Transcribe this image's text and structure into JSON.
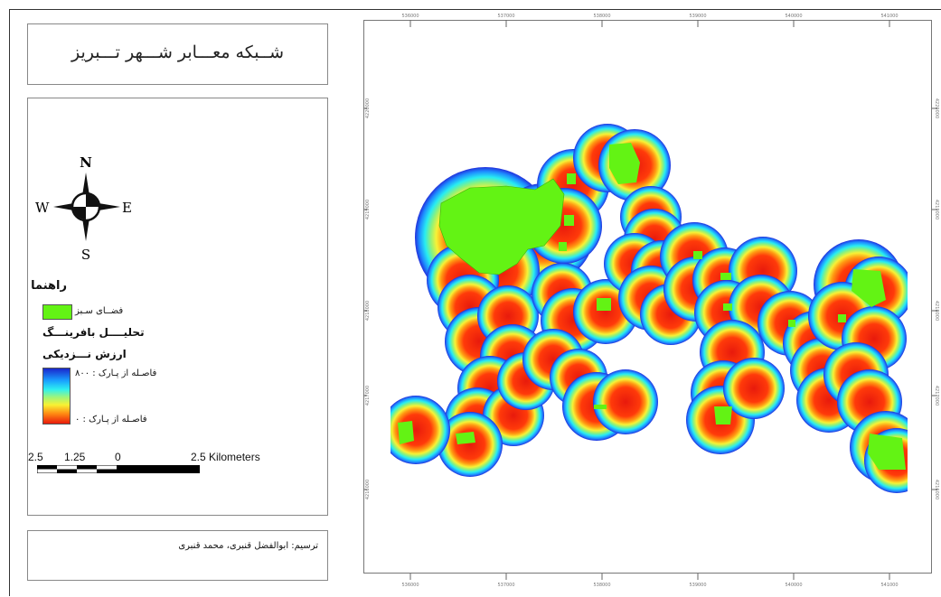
{
  "title": "شــبکه معـــابر شـــهر تـــبریز",
  "legend": {
    "north_letter": "N",
    "south_letter": "S",
    "east_letter": "E",
    "west_letter": "W",
    "title": "راهنما",
    "green_space_label": "فضــای سـبز",
    "buffer_analysis_title": "تحلیــــل بافرینـــگ",
    "proximity_title": "ارزش نـــزدیکی",
    "ramp_high_label": "فاصـله از پـارک : ۸۰۰",
    "ramp_low_label": "فاصـله از پـارک : ۰",
    "colors": {
      "green_space": "#63f314",
      "far": "#1a26cc",
      "near": "#e81a0c"
    }
  },
  "scale_bar": {
    "labels": [
      "2.5",
      "1.25",
      "0",
      "2.5 Kilometers"
    ]
  },
  "credit": "ترسیم: ابوالفضل قنبری، محمد قنبری",
  "map": {
    "buffer_distance_max": 800,
    "buffer_distance_min": 0,
    "tick_labels_top": [
      "536000",
      "537000",
      "538000",
      "539000",
      "540000",
      "541000"
    ],
    "tick_labels_side": [
      "4220000",
      "4219000",
      "4218000",
      "4217000",
      "4216000"
    ]
  }
}
